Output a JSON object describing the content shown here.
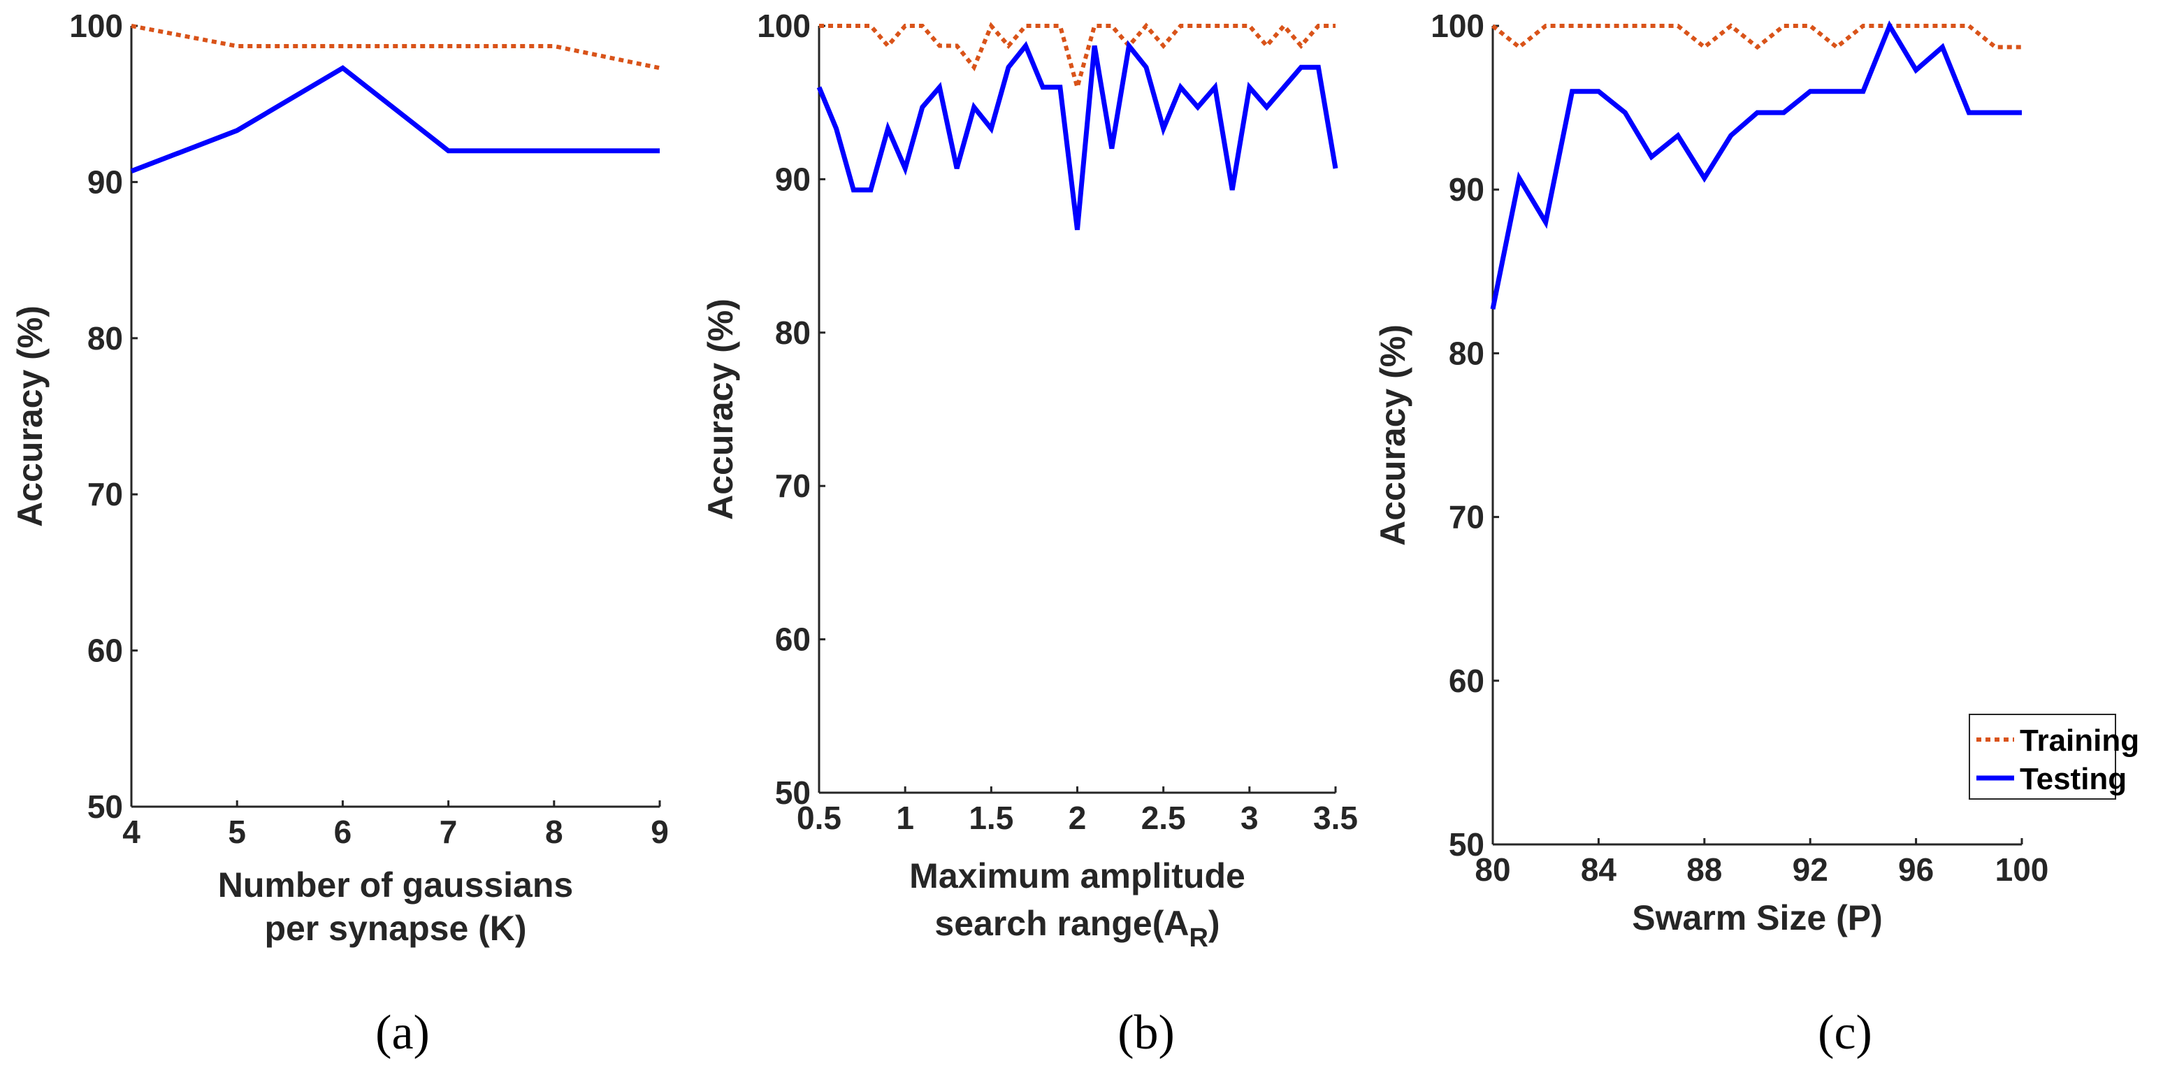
{
  "colors": {
    "training": "#D95319",
    "testing": "#0000FF",
    "axis": "#262626"
  },
  "legend": {
    "placement": "lower-right",
    "panel": 2,
    "entries": [
      "Training",
      "Testing"
    ]
  },
  "chart_data": [
    {
      "type": "line",
      "panel_label": "(a)",
      "xlabel": [
        "Number of gaussians",
        "per synapse (K)"
      ],
      "ylabel": "Accuracy (%)",
      "xlim": [
        4,
        9
      ],
      "ylim": [
        50,
        100
      ],
      "xticks": [
        4,
        5,
        6,
        7,
        8,
        9
      ],
      "xtick_labels": [
        "4",
        "5",
        "6",
        "7",
        "8",
        "9"
      ],
      "yticks": [
        50,
        60,
        70,
        80,
        90,
        100
      ],
      "ytick_labels": [
        "50",
        "60",
        "70",
        "80",
        "90",
        "100"
      ],
      "series": [
        {
          "name": "Training",
          "style": "dotted",
          "x": [
            4,
            5,
            6,
            7,
            8,
            9
          ],
          "y": [
            100,
            98.7,
            98.7,
            98.7,
            98.7,
            97.3
          ]
        },
        {
          "name": "Testing",
          "style": "solid",
          "x": [
            4,
            5,
            6,
            7,
            8,
            9
          ],
          "y": [
            90.7,
            93.3,
            97.3,
            92,
            92,
            92
          ]
        }
      ]
    },
    {
      "type": "line",
      "panel_label": "(b)",
      "xlabel": [
        "Maximum amplitude",
        "search range(A",
        "R",
        ")"
      ],
      "ylabel": "Accuracy (%)",
      "xlim": [
        0.5,
        3.5
      ],
      "ylim": [
        50,
        100
      ],
      "xticks": [
        0.5,
        1,
        1.5,
        2,
        2.5,
        3,
        3.5
      ],
      "xtick_labels": [
        "0.5",
        "1",
        "1.5",
        "2",
        "2.5",
        "3",
        "3.5"
      ],
      "yticks": [
        50,
        60,
        70,
        80,
        90,
        100
      ],
      "ytick_labels": [
        "50",
        "60",
        "70",
        "80",
        "90",
        "100"
      ],
      "series": [
        {
          "name": "Training",
          "style": "dotted",
          "x": [
            0.5,
            0.6,
            0.7,
            0.8,
            0.9,
            1.0,
            1.1,
            1.2,
            1.3,
            1.4,
            1.5,
            1.6,
            1.7,
            1.8,
            1.9,
            2.0,
            2.1,
            2.2,
            2.3,
            2.4,
            2.5,
            2.6,
            2.7,
            2.8,
            2.9,
            3.0,
            3.1,
            3.2,
            3.3,
            3.4,
            3.5
          ],
          "y": [
            100,
            100,
            100,
            100,
            98.7,
            100,
            100,
            98.7,
            98.7,
            97.3,
            100,
            98.7,
            100,
            100,
            100,
            96,
            100,
            100,
            98.7,
            100,
            98.7,
            100,
            100,
            100,
            100,
            100,
            98.7,
            100,
            98.7,
            100,
            100
          ]
        },
        {
          "name": "Testing",
          "style": "solid",
          "x": [
            0.5,
            0.6,
            0.7,
            0.8,
            0.9,
            1.0,
            1.1,
            1.2,
            1.3,
            1.4,
            1.5,
            1.6,
            1.7,
            1.8,
            1.9,
            2.0,
            2.1,
            2.2,
            2.3,
            2.4,
            2.5,
            2.6,
            2.7,
            2.8,
            2.9,
            3.0,
            3.1,
            3.2,
            3.3,
            3.4,
            3.5
          ],
          "y": [
            96,
            93.3,
            89.3,
            89.3,
            93.3,
            90.7,
            94.7,
            96,
            90.7,
            94.7,
            93.3,
            97.3,
            98.7,
            96,
            96,
            86.7,
            98.7,
            92,
            98.7,
            97.3,
            93.3,
            96,
            94.7,
            96,
            89.3,
            96,
            94.7,
            96,
            97.3,
            97.3,
            90.7
          ]
        }
      ]
    },
    {
      "type": "line",
      "panel_label": "(c)",
      "xlabel": [
        "Swarm Size (P)"
      ],
      "ylabel": "Accuracy (%)",
      "xlim": [
        80,
        100
      ],
      "ylim": [
        50,
        100
      ],
      "xticks": [
        80,
        84,
        88,
        92,
        96,
        100
      ],
      "xtick_labels": [
        "80",
        "84",
        "88",
        "92",
        "96",
        "100"
      ],
      "yticks": [
        50,
        60,
        70,
        80,
        90,
        100
      ],
      "ytick_labels": [
        "50",
        "60",
        "70",
        "80",
        "90",
        "100"
      ],
      "series": [
        {
          "name": "Training",
          "style": "dotted",
          "x": [
            80,
            81,
            82,
            83,
            84,
            85,
            86,
            87,
            88,
            89,
            90,
            91,
            92,
            93,
            94,
            95,
            96,
            97,
            98,
            99,
            100
          ],
          "y": [
            100,
            98.7,
            100,
            100,
            100,
            100,
            100,
            100,
            98.7,
            100,
            98.7,
            100,
            100,
            98.7,
            100,
            100,
            100,
            100,
            100,
            98.7,
            98.7
          ]
        },
        {
          "name": "Testing",
          "style": "solid",
          "x": [
            80,
            81,
            82,
            83,
            84,
            85,
            86,
            87,
            88,
            89,
            90,
            91,
            92,
            93,
            94,
            95,
            96,
            97,
            98,
            99,
            100
          ],
          "y": [
            82.7,
            90.7,
            88,
            96,
            96,
            94.7,
            92,
            93.3,
            90.7,
            93.3,
            94.7,
            94.7,
            96,
            96,
            96,
            100,
            97.3,
            98.7,
            94.7,
            94.7,
            94.7
          ]
        }
      ]
    }
  ]
}
